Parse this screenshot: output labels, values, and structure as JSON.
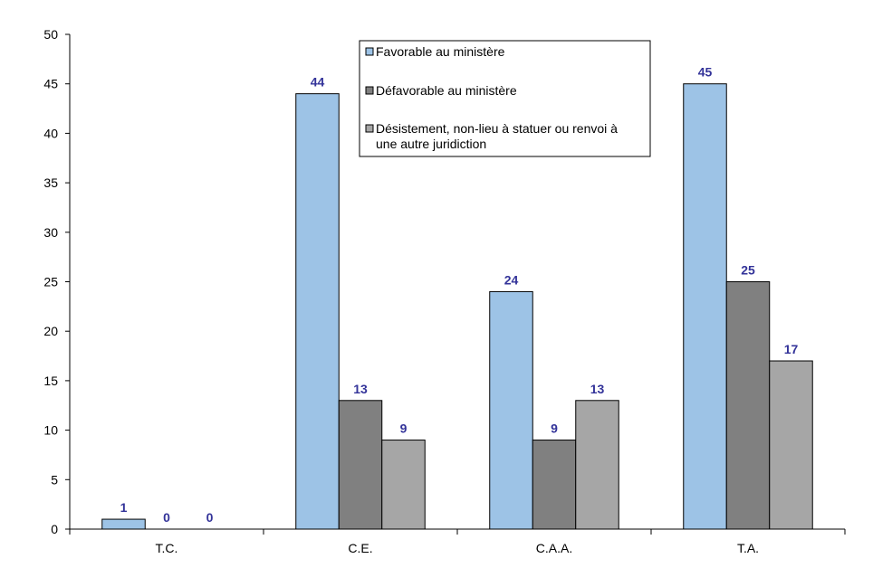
{
  "chart_data": {
    "type": "bar",
    "categories": [
      "T.C.",
      "C.E.",
      "C.A.A.",
      "T.A."
    ],
    "series": [
      {
        "name": "Favorable au ministère",
        "values": [
          1,
          44,
          24,
          45
        ],
        "color": "#9DC3E6"
      },
      {
        "name": "Défavorable au ministère",
        "values": [
          0,
          13,
          9,
          25
        ],
        "color": "#808080"
      },
      {
        "name": "Désistement, non-lieu à statuer ou renvoi à une autre juridiction",
        "values": [
          0,
          9,
          13,
          17
        ],
        "color": "#A6A6A6"
      }
    ],
    "legend_lines": [
      [
        "Favorable au ministère"
      ],
      [
        "Défavorable au ministère"
      ],
      [
        "Désistement, non-lieu à statuer ou renvoi à",
        "une autre juridiction"
      ]
    ],
    "ylim": [
      0,
      50
    ],
    "yticks": [
      "0",
      "5",
      "10",
      "15",
      "20",
      "25",
      "30",
      "35",
      "40",
      "45",
      "50"
    ],
    "legend_position": "top-center",
    "grid": false,
    "label_color": "#333399"
  }
}
